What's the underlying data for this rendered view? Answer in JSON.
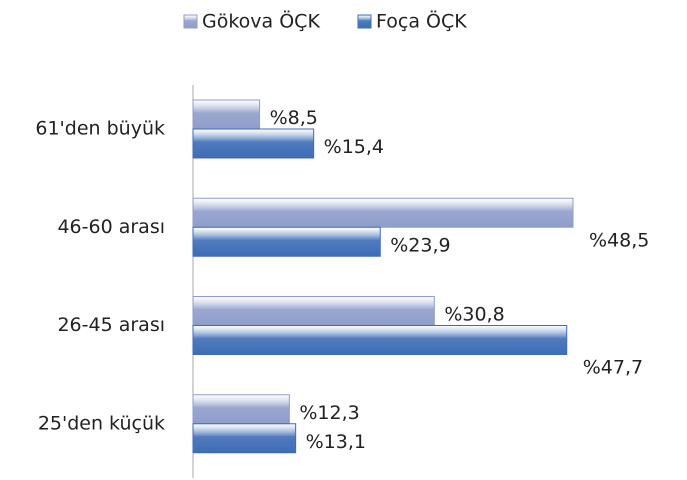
{
  "chart_data": {
    "type": "hbar",
    "categories": [
      "61'den büyük",
      "46-60 arası",
      "26-45 arası",
      "25'den küçük"
    ],
    "series": [
      {
        "name": "Gökova ÖÇK",
        "color": "#8f9dca",
        "values": [
          8.5,
          48.5,
          30.8,
          12.3
        ],
        "value_labels": [
          "%8,5",
          "%48,5",
          "%30,8",
          "%12,3"
        ]
      },
      {
        "name": "Foça ÖÇK",
        "color": "#3d6db6",
        "values": [
          15.4,
          23.9,
          47.7,
          13.1
        ],
        "value_labels": [
          "%15,4",
          "%23,9",
          "%47,7",
          "%13,1"
        ]
      }
    ],
    "legend": "top"
  }
}
